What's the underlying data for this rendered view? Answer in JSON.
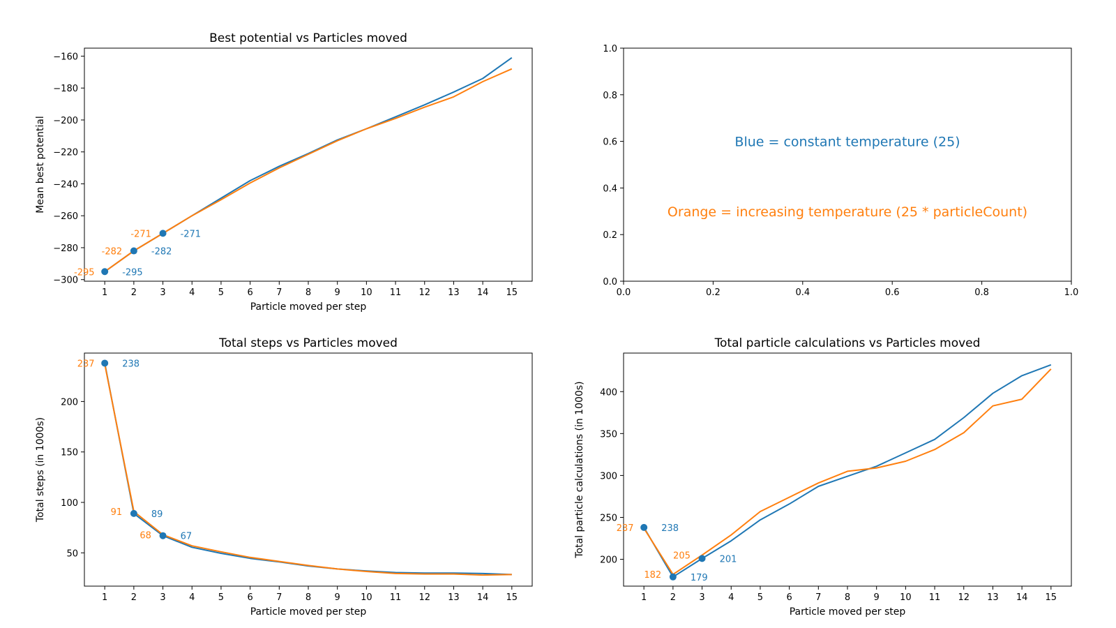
{
  "colors": {
    "blue": "#1f77b4",
    "orange": "#ff7f0e"
  },
  "chart_data": [
    {
      "id": "potential",
      "type": "line",
      "title": "Best potential vs Particles moved",
      "xlabel": "Particle moved per step",
      "ylabel": "Mean best potential",
      "xlim": [
        0.3,
        15.7
      ],
      "ylim": [
        -301,
        -155
      ],
      "xticks": [
        1,
        2,
        3,
        4,
        5,
        6,
        7,
        8,
        9,
        10,
        11,
        12,
        13,
        14,
        15
      ],
      "yticks": [
        -300,
        -280,
        -260,
        -240,
        -220,
        -200,
        -180,
        -160
      ],
      "x": [
        1,
        2,
        3,
        4,
        5,
        6,
        7,
        8,
        9,
        10,
        11,
        12,
        13,
        14,
        15
      ],
      "series": [
        {
          "color": "blue",
          "values": [
            -295,
            -282,
            -271,
            -260,
            -249,
            -238,
            -229,
            -221,
            -212.5,
            -205.5,
            -198,
            -190.5,
            -182.5,
            -174,
            -161
          ]
        },
        {
          "color": "orange",
          "values": [
            -295,
            -282,
            -271,
            -260,
            -250,
            -239.5,
            -230,
            -221.5,
            -213,
            -205.5,
            -199,
            -192,
            -185.5,
            -176,
            -168
          ]
        }
      ],
      "markers": [
        {
          "x": 1,
          "y": -295
        },
        {
          "x": 2,
          "y": -282
        },
        {
          "x": 3,
          "y": -271
        }
      ],
      "annotations": [
        {
          "text": "-295",
          "x": 0.65,
          "y": -295,
          "color": "orange",
          "anchor": "end"
        },
        {
          "text": "-282",
          "x": 1.6,
          "y": -282,
          "color": "orange",
          "anchor": "end"
        },
        {
          "text": "-271",
          "x": 2.6,
          "y": -271,
          "color": "orange",
          "anchor": "end"
        },
        {
          "text": "-295",
          "x": 1.6,
          "y": -295,
          "color": "blue",
          "anchor": "start"
        },
        {
          "text": "-282",
          "x": 2.6,
          "y": -282,
          "color": "blue",
          "anchor": "start"
        },
        {
          "text": "-271",
          "x": 3.6,
          "y": -271,
          "color": "blue",
          "anchor": "start"
        }
      ]
    },
    {
      "id": "legend",
      "type": "text",
      "xlim": [
        0,
        1
      ],
      "ylim": [
        0,
        1
      ],
      "xticks": [
        0.0,
        0.2,
        0.4,
        0.6,
        0.8,
        1.0
      ],
      "yticks": [
        0.0,
        0.2,
        0.4,
        0.6,
        0.8,
        1.0
      ],
      "tick_decimals": 1,
      "texts": [
        {
          "text": "Blue = constant temperature (25)",
          "x": 0.5,
          "y": 0.6,
          "color": "blue"
        },
        {
          "text": "Orange = increasing temperature (25 * particleCount)",
          "x": 0.5,
          "y": 0.3,
          "color": "orange"
        }
      ]
    },
    {
      "id": "steps",
      "type": "line",
      "title": "Total steps vs Particles moved",
      "xlabel": "Particle moved per step",
      "ylabel": "Total steps (in 1000s)",
      "xlim": [
        0.3,
        15.7
      ],
      "ylim": [
        17,
        248
      ],
      "xticks": [
        1,
        2,
        3,
        4,
        5,
        6,
        7,
        8,
        9,
        10,
        11,
        12,
        13,
        14,
        15
      ],
      "yticks": [
        50,
        100,
        150,
        200
      ],
      "x": [
        1,
        2,
        3,
        4,
        5,
        6,
        7,
        8,
        9,
        10,
        11,
        12,
        13,
        14,
        15
      ],
      "series": [
        {
          "color": "blue",
          "values": [
            238,
            89,
            67,
            55.5,
            49.5,
            44.5,
            41,
            37,
            34,
            32,
            30.5,
            30,
            30,
            29.5,
            28.5
          ]
        },
        {
          "color": "orange",
          "values": [
            237,
            91,
            68,
            57,
            51,
            45.5,
            41.5,
            37.5,
            34,
            31.5,
            29.5,
            29,
            29,
            28,
            28.5
          ]
        }
      ],
      "markers": [
        {
          "x": 1,
          "y": 238
        },
        {
          "x": 2,
          "y": 89
        },
        {
          "x": 3,
          "y": 67
        }
      ],
      "annotations": [
        {
          "text": "237",
          "x": 0.65,
          "y": 238,
          "color": "orange",
          "anchor": "end"
        },
        {
          "text": "238",
          "x": 1.6,
          "y": 238,
          "color": "blue",
          "anchor": "start"
        },
        {
          "text": "91",
          "x": 1.6,
          "y": 91,
          "color": "orange",
          "anchor": "end"
        },
        {
          "text": "89",
          "x": 2.6,
          "y": 89,
          "color": "blue",
          "anchor": "start"
        },
        {
          "text": "68",
          "x": 2.6,
          "y": 68,
          "color": "orange",
          "anchor": "end"
        },
        {
          "text": "67",
          "x": 3.6,
          "y": 67,
          "color": "blue",
          "anchor": "start"
        }
      ]
    },
    {
      "id": "calcs",
      "type": "line",
      "title": "Total particle calculations vs Particles moved",
      "xlabel": "Particle moved per step",
      "ylabel": "Total particle calculations (in 1000s)",
      "xlim": [
        0.3,
        15.7
      ],
      "ylim": [
        168,
        446
      ],
      "xticks": [
        1,
        2,
        3,
        4,
        5,
        6,
        7,
        8,
        9,
        10,
        11,
        12,
        13,
        14,
        15
      ],
      "yticks": [
        200,
        250,
        300,
        350,
        400
      ],
      "x": [
        1,
        2,
        3,
        4,
        5,
        6,
        7,
        8,
        9,
        10,
        11,
        12,
        13,
        14,
        15
      ],
      "series": [
        {
          "color": "blue",
          "values": [
            238,
            179,
            201,
            222,
            247,
            266,
            287,
            299,
            311,
            327,
            343,
            369,
            398,
            419,
            432
          ]
        },
        {
          "color": "orange",
          "values": [
            237,
            182,
            205,
            229,
            257,
            274,
            291,
            305,
            309,
            317,
            331,
            351,
            383,
            391,
            427
          ]
        }
      ],
      "markers": [
        {
          "x": 1,
          "y": 238
        },
        {
          "x": 2,
          "y": 179
        },
        {
          "x": 3,
          "y": 201
        }
      ],
      "annotations": [
        {
          "text": "237",
          "x": 0.65,
          "y": 238,
          "color": "orange",
          "anchor": "end"
        },
        {
          "text": "238",
          "x": 1.6,
          "y": 238,
          "color": "blue",
          "anchor": "start"
        },
        {
          "text": "182",
          "x": 1.6,
          "y": 182,
          "color": "orange",
          "anchor": "end"
        },
        {
          "text": "179",
          "x": 2.6,
          "y": 179,
          "color": "blue",
          "anchor": "start"
        },
        {
          "text": "205",
          "x": 2.6,
          "y": 205,
          "color": "orange",
          "anchor": "end"
        },
        {
          "text": "201",
          "x": 3.6,
          "y": 201,
          "color": "blue",
          "anchor": "start"
        }
      ]
    }
  ]
}
